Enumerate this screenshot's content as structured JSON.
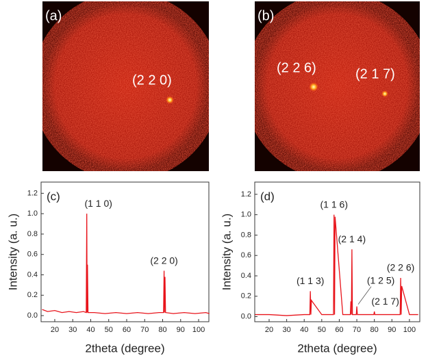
{
  "images": [
    {
      "label": "(a)",
      "spots": [
        {
          "label": "(2 2 0)"
        }
      ]
    },
    {
      "label": "(b)",
      "spots": [
        {
          "label": "(2 2 6)"
        },
        {
          "label": "(2 1 7)"
        }
      ]
    }
  ],
  "chart_data": [
    {
      "type": "line",
      "label": "(c)",
      "xlabel": "2theta (degree)",
      "ylabel": "Intensity (a. u.)",
      "color": "#e8141b",
      "x": [
        13,
        16,
        20,
        24,
        28,
        32,
        36,
        37.5,
        37.8,
        38,
        38.2,
        38.5,
        42,
        48,
        54,
        60,
        66,
        72,
        78,
        80.5,
        80.8,
        81,
        81.3,
        81.6,
        86,
        92,
        98,
        104,
        106
      ],
      "values": [
        0.06,
        0.04,
        0.05,
        0.03,
        0.04,
        0.03,
        0.04,
        0.03,
        1.0,
        0.03,
        0.5,
        0.03,
        0.03,
        0.02,
        0.03,
        0.02,
        0.03,
        0.02,
        0.03,
        0.03,
        0.44,
        0.03,
        0.38,
        0.03,
        0.02,
        0.03,
        0.02,
        0.03,
        0.02
      ],
      "xlim": [
        12.4,
        105.7
      ],
      "ylim": [
        -0.06,
        1.31
      ],
      "xticks": [
        20,
        30,
        40,
        50,
        60,
        70,
        80,
        90,
        100
      ],
      "yticks": [
        {
          "value": 0,
          "label": "0.0"
        },
        0.2,
        0.4,
        0.6,
        0.8,
        {
          "value": 1,
          "label": "1.0"
        },
        1.2
      ],
      "annotations": [
        {
          "text": "(1 1 0)",
          "x": 37.8,
          "y": 1.0
        },
        {
          "text": "(2 2 0)",
          "x": 80.8,
          "y": 0.44
        }
      ]
    },
    {
      "type": "line",
      "label": "(d)",
      "xlabel": "2theta (degree)",
      "ylabel": "Intensity (a. u.)",
      "color": "#e8141b",
      "x": [
        12,
        20,
        30,
        40,
        43.2,
        43.5,
        43.8,
        44.1,
        50,
        56.7,
        57,
        57.3,
        57.6,
        62,
        66.3,
        66.6,
        66.9,
        67.2,
        67.5,
        69.7,
        70,
        70.3,
        75,
        79.7,
        80,
        80.3,
        88,
        94.7,
        95,
        95.3,
        95.6,
        100,
        105
      ],
      "values": [
        0.02,
        0.02,
        0.01,
        0.02,
        0.02,
        0.25,
        0.02,
        0.16,
        0.02,
        0.02,
        1.0,
        0.02,
        0.98,
        0.02,
        0.02,
        0.15,
        0.02,
        0.66,
        0.02,
        0.02,
        0.1,
        0.02,
        0.02,
        0.02,
        0.05,
        0.02,
        0.02,
        0.02,
        0.38,
        0.02,
        0.3,
        0.02,
        0.02
      ],
      "xlim": [
        11.8,
        105.9
      ],
      "ylim": [
        -0.05,
        1.32
      ],
      "xticks": [
        20,
        30,
        40,
        50,
        60,
        70,
        80,
        90,
        100
      ],
      "yticks": [
        {
          "value": 0,
          "label": "0.0"
        },
        0.2,
        0.4,
        0.6,
        0.8,
        {
          "value": 1,
          "label": "1.0"
        },
        1.2
      ],
      "annotations": [
        {
          "text": "(1 1 3)",
          "x": 43.5,
          "y": 0.25
        },
        {
          "text": "(1 1 6)",
          "x": 57,
          "y": 1.0
        },
        {
          "text": "(2 1 4)",
          "x": 67.2,
          "y": 0.66
        },
        {
          "text": "(1 2 5)",
          "x": 70,
          "y": 0.1
        },
        {
          "text": "(2 1 7)",
          "x": 80,
          "y": 0.05
        },
        {
          "text": "(2 2 6)",
          "x": 95,
          "y": 0.38
        }
      ]
    }
  ]
}
